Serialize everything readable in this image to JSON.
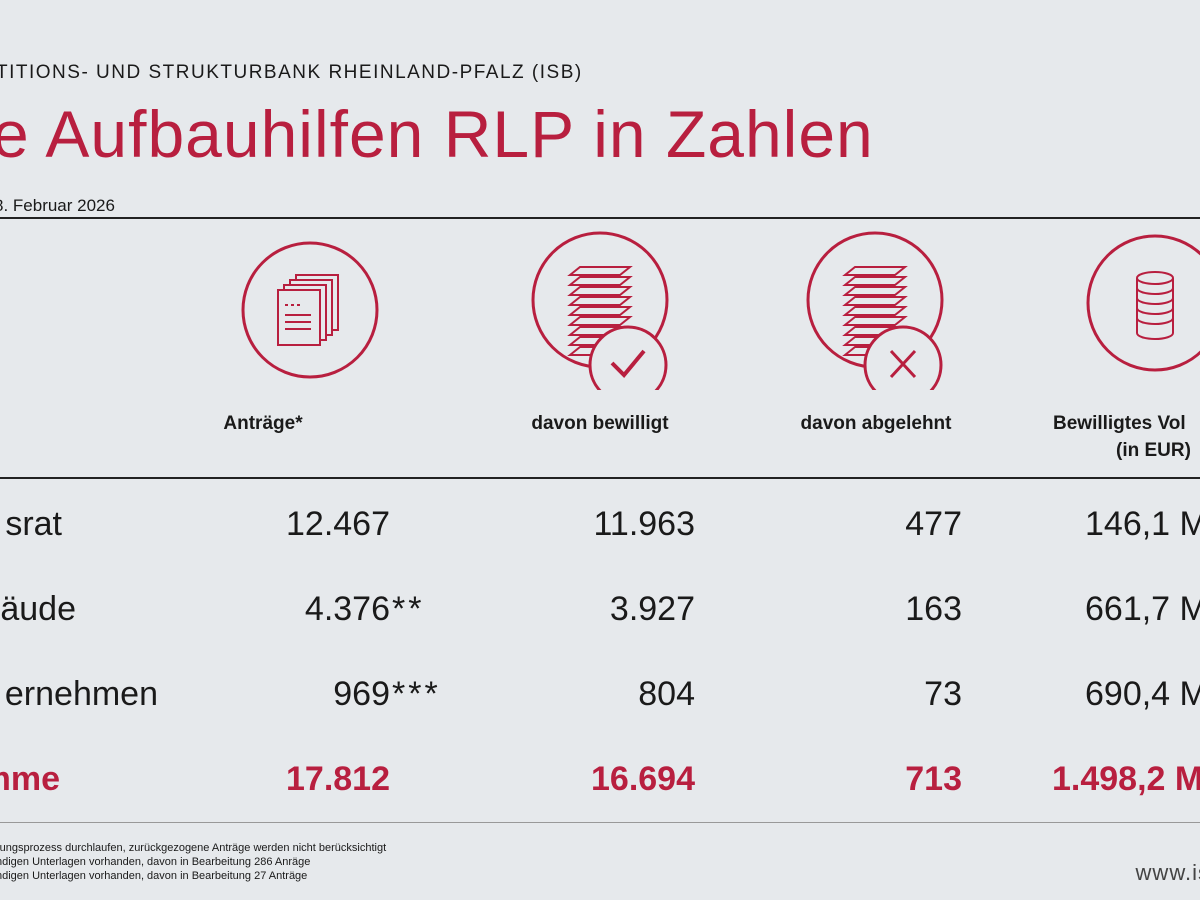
{
  "header": {
    "org": "TITIONS- UND STRUKTURBANK RHEINLAND-PFALZ (ISB)",
    "title": "e Aufbauhilfen RLP in Zahlen",
    "date": "8. Februar 2026"
  },
  "columns": [
    {
      "label": "Anträge*",
      "icon": "documents-icon"
    },
    {
      "label": "davon bewilligt",
      "icon": "stack-check-icon"
    },
    {
      "label": "davon abgelehnt",
      "icon": "stack-x-icon"
    },
    {
      "label": "Bewilligtes Vol",
      "sublabel": "(in EUR)",
      "icon": "coins-icon"
    }
  ],
  "rows": [
    {
      "label": "srat",
      "antraege": "12.467",
      "antraege_mark": "",
      "bewilligt": "11.963",
      "abgelehnt": "477",
      "volumen": "146,1 M"
    },
    {
      "label": "äude",
      "antraege": "4.376",
      "antraege_mark": "**",
      "bewilligt": "3.927",
      "abgelehnt": "163",
      "volumen": "661,7 M"
    },
    {
      "label": "ernehmen",
      "antraege": "969",
      "antraege_mark": "***",
      "bewilligt": "804",
      "abgelehnt": "73",
      "volumen": "690,4 M"
    },
    {
      "label": "mme",
      "antraege": "17.812",
      "antraege_mark": "",
      "bewilligt": "16.694",
      "abgelehnt": "713",
      "volumen": "1.498,2 M"
    }
  ],
  "footnotes": [
    "rungsprozess durchlaufen, zurückgezogene Anträge werden nicht berücksichtigt",
    "ndigen Unterlagen vorhanden, davon in Bearbeitung 286 Anräge",
    "ndigen Unterlagen vorhanden, davon in Bearbeitung 27 Anträge"
  ],
  "url": "www.is",
  "colors": {
    "accent": "#b81f3f",
    "background": "#e6e9ec"
  }
}
